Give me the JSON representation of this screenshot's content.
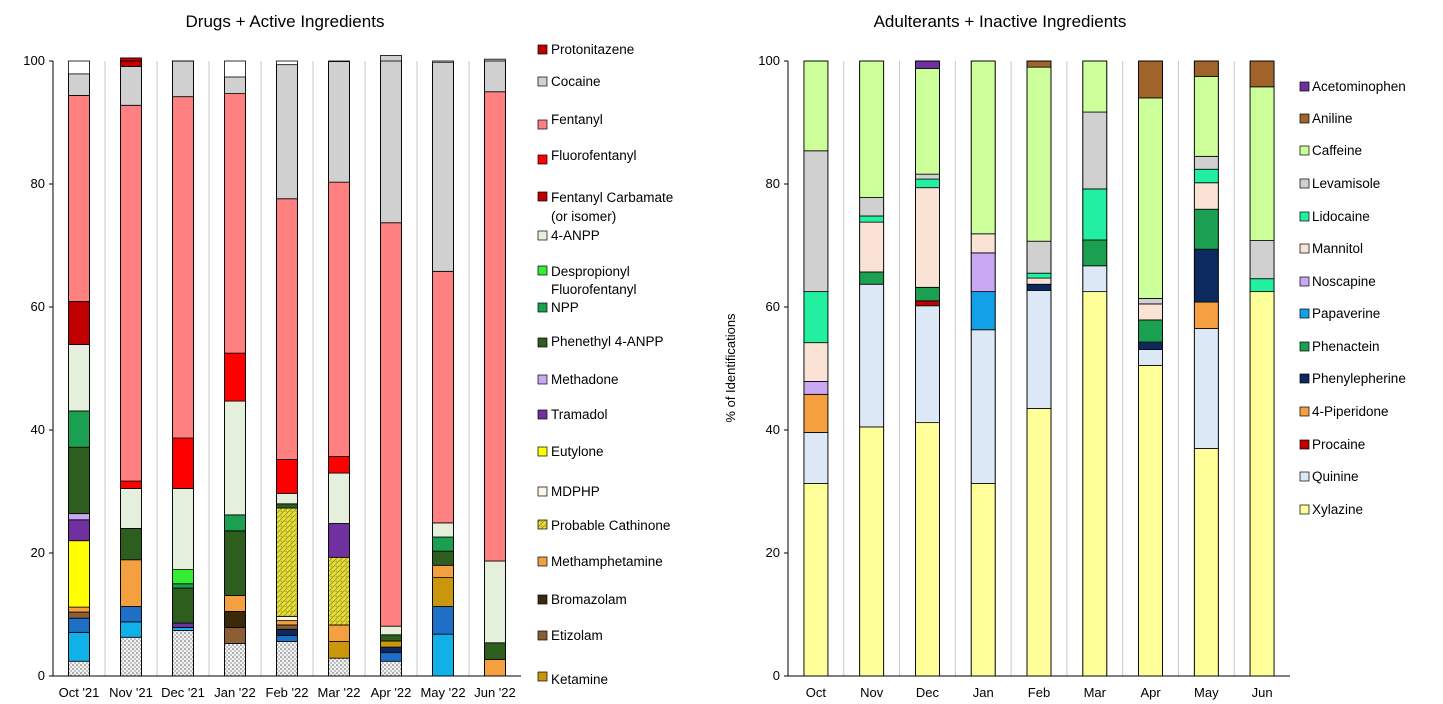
{
  "chart_data": [
    {
      "type": "bar",
      "stacked": true,
      "title": "Drugs + Active Ingredients",
      "ylabel": "",
      "ylim": [
        0,
        100
      ],
      "yticks": [
        0,
        20,
        40,
        60,
        80,
        100
      ],
      "grid": "vertical",
      "legend_position": "right",
      "categories": [
        "Oct '21",
        "Nov '21",
        "Dec '21",
        "Jan '22",
        "Feb '22",
        "Mar '22",
        "Apr '22",
        "May '22",
        "Jun '22"
      ],
      "stack_order_bottom_to_top": [
        "Other (dotted)",
        "Fentanyl-related blue",
        "Ketamine",
        "Etizolam",
        "Bromazolam",
        "Methamphetamine",
        "MDPHP",
        "Probable Cathinone",
        "Eutylone",
        "Tramadol",
        "Methadone",
        "Phenethyl 4-ANPP",
        "NPP",
        "Despropionyl Fluorofentanyl",
        "4-ANPP",
        "Fentanyl Carbamate (or isomer)",
        "Fluorofentanyl",
        "Fentanyl",
        "Cocaine",
        "Protonitazene"
      ],
      "series": [
        {
          "name": "Ketamine",
          "color": "#c9960c",
          "values": [
            0,
            0,
            0,
            0,
            0,
            2.7,
            1.0,
            4.7,
            0
          ]
        },
        {
          "name": "Etizolam",
          "color": "#8b5e34",
          "values": [
            1.0,
            0,
            0,
            2.6,
            0.7,
            0,
            0,
            0,
            0
          ]
        },
        {
          "name": "Bromazolam",
          "color": "#3b2a0a",
          "values": [
            0,
            0,
            0,
            2.6,
            0,
            0,
            0,
            0,
            0
          ]
        },
        {
          "name": "Methamphetamine",
          "color": "#f5a040",
          "values": [
            0.8,
            7.6,
            0,
            2.6,
            0.7,
            2.7,
            0,
            2.0,
            2.7
          ]
        },
        {
          "name": "MDPHP",
          "color": "#fdf5e6",
          "values": [
            0,
            0,
            0,
            0,
            0.7,
            0,
            0,
            0,
            0
          ]
        },
        {
          "name": "Probable Cathinone",
          "color": "#d8d23a",
          "values": [
            0,
            0,
            0,
            0,
            17.6,
            11.0,
            0,
            0,
            0
          ]
        },
        {
          "name": "Eutylone",
          "color": "#ffff00",
          "values": [
            10.8,
            0,
            0,
            0,
            0,
            0,
            0,
            0,
            0
          ]
        },
        {
          "name": "Tramadol",
          "color": "#7030a0",
          "values": [
            3.4,
            0,
            0.7,
            0,
            0,
            5.5,
            0,
            0,
            0
          ]
        },
        {
          "name": "Methadone",
          "color": "#c8a8f0",
          "values": [
            1.0,
            0,
            0,
            0,
            0,
            0,
            0,
            0,
            0
          ]
        },
        {
          "name": "Phenethyl 4-ANPP",
          "color": "#2e5e1e",
          "values": [
            10.8,
            5.1,
            5.7,
            10.5,
            0.7,
            0,
            1.0,
            2.3,
            2.7
          ]
        },
        {
          "name": "NPP",
          "color": "#1aa050",
          "values": [
            5.9,
            0,
            0.7,
            2.6,
            0,
            0,
            0,
            2.3,
            0
          ]
        },
        {
          "name": "Despropionyl Fluorofentanyl",
          "color": "#33ee33",
          "values": [
            0,
            0,
            2.3,
            0,
            0,
            0,
            0,
            0,
            0
          ]
        },
        {
          "name": "4-ANPP",
          "color": "#e4f0dc",
          "values": [
            10.8,
            6.5,
            13.2,
            18.5,
            1.7,
            8.2,
            1.4,
            2.3,
            13.3
          ]
        },
        {
          "name": "Fentanyl Carbamate (or isomer)",
          "color": "#c00000",
          "values": [
            7.0,
            0,
            0,
            0,
            0,
            0,
            0,
            0,
            0
          ]
        },
        {
          "name": "Fluorofentanyl",
          "color": "#ff0000",
          "values": [
            0,
            1.2,
            8.2,
            7.8,
            5.5,
            2.7,
            0,
            0,
            0
          ]
        },
        {
          "name": "Fentanyl",
          "color": "#ff8080",
          "values": [
            33.5,
            61.1,
            55.5,
            42.2,
            42.4,
            44.6,
            65.6,
            40.9,
            76.3
          ]
        },
        {
          "name": "Cocaine",
          "color": "#d0d0d0",
          "values": [
            3.5,
            6.3,
            5.8,
            2.7,
            21.8,
            19.6,
            27.2,
            34.0,
            5.3
          ]
        },
        {
          "name": "Protonitazene",
          "color": "#c00000",
          "values": [
            0,
            1.4,
            0,
            0,
            0,
            0,
            0,
            0,
            0
          ]
        },
        {
          "name": "",
          "color": "#e0e0e0",
          "pattern": "dotted",
          "values": [
            2.4,
            6.3,
            7.4,
            5.3,
            5.6,
            2.9,
            2.4,
            0,
            0
          ]
        },
        {
          "name": "",
          "color": "#1e6fc8",
          "values": [
            2.3,
            2.5,
            0,
            0,
            1.0,
            0,
            1.4,
            4.5,
            0
          ]
        },
        {
          "name": "",
          "color": "#12b0e8",
          "values": [
            4.7,
            2.5,
            0.5,
            0,
            0,
            0,
            0,
            6.8,
            0
          ]
        },
        {
          "name": "",
          "color": "#0d2a60",
          "values": [
            0,
            0,
            0,
            0,
            1.0,
            0,
            0.9,
            0,
            0
          ]
        }
      ]
    },
    {
      "type": "bar",
      "stacked": true,
      "title": "Adulterants + Inactive Ingredients",
      "ylabel": "% of Identifications",
      "ylim": [
        0,
        100
      ],
      "yticks": [
        0,
        20,
        40,
        60,
        80,
        100
      ],
      "grid": "vertical",
      "legend_position": "right",
      "categories": [
        "Oct",
        "Nov",
        "Dec",
        "Jan",
        "Feb",
        "Mar",
        "Apr",
        "May",
        "Jun"
      ],
      "series": [
        {
          "name": "Xylazine",
          "color": "#ffff99",
          "values": [
            31.3,
            40.5,
            41.2,
            31.3,
            43.5,
            62.5,
            50.5,
            37.0,
            62.5
          ]
        },
        {
          "name": "Quinine",
          "color": "#dce8f5",
          "values": [
            8.3,
            23.2,
            19.0,
            25.0,
            19.2,
            4.2,
            2.6,
            19.5,
            0
          ]
        },
        {
          "name": "Procaine",
          "color": "#c00000",
          "values": [
            0,
            0,
            0.8,
            0,
            0,
            0,
            0,
            0,
            0
          ]
        },
        {
          "name": "4-Piperidone",
          "color": "#f5a040",
          "values": [
            6.2,
            0,
            0,
            0,
            0,
            0,
            0,
            4.3,
            0
          ]
        },
        {
          "name": "Phenylepherine",
          "color": "#0d2a60",
          "values": [
            0,
            0,
            0,
            0,
            1.0,
            0,
            1.2,
            8.6,
            0
          ]
        },
        {
          "name": "Phenactein",
          "color": "#1aa050",
          "values": [
            0,
            2.0,
            2.2,
            0,
            0,
            4.2,
            3.6,
            6.5,
            0
          ]
        },
        {
          "name": "Papaverine",
          "color": "#12a0e8",
          "values": [
            0,
            0,
            0,
            6.2,
            0,
            0,
            0,
            0,
            0
          ]
        },
        {
          "name": "Noscapine",
          "color": "#c8a8f0",
          "values": [
            2.1,
            0,
            0,
            6.3,
            0,
            0,
            0,
            0,
            0
          ]
        },
        {
          "name": "Mannitol",
          "color": "#fae3d5",
          "values": [
            6.3,
            8.1,
            16.2,
            3.1,
            1.0,
            0,
            2.6,
            4.3,
            0
          ]
        },
        {
          "name": "Lidocaine",
          "color": "#22f0a0",
          "values": [
            8.3,
            1.0,
            1.4,
            0,
            0.8,
            8.3,
            0,
            2.2,
            2.1
          ]
        },
        {
          "name": "Levamisole",
          "color": "#d0d0d0",
          "values": [
            22.9,
            3.0,
            0.8,
            0,
            5.2,
            12.5,
            0.9,
            2.1,
            6.2
          ]
        },
        {
          "name": "Caffeine",
          "color": "#ccff99",
          "values": [
            14.6,
            22.2,
            17.2,
            28.1,
            28.3,
            8.3,
            32.6,
            13.0,
            25.0
          ]
        },
        {
          "name": "Aniline",
          "color": "#a0642a",
          "values": [
            0,
            0,
            0,
            0,
            1.0,
            0,
            6.0,
            2.5,
            4.2
          ]
        },
        {
          "name": "Acetominophen",
          "color": "#7030a0",
          "values": [
            0,
            0,
            1.2,
            0,
            0,
            0,
            0,
            0,
            0
          ]
        }
      ]
    }
  ],
  "left_chart": {
    "title": "Drugs + Active Ingredients",
    "legend": [
      "Protonitazene",
      "Cocaine",
      "Fentanyl",
      "Fluorofentanyl",
      "Fentanyl Carbamate",
      "(or isomer)",
      "4-ANPP",
      "Despropionyl",
      "Fluorofentanyl",
      "NPP",
      "Phenethyl 4-ANPP",
      "Methadone",
      "Tramadol",
      "Eutylone",
      "MDPHP",
      "Probable Cathinone",
      "Methamphetamine",
      "Bromazolam",
      "Etizolam",
      "Ketamine"
    ]
  },
  "right_chart": {
    "title": "Adulterants + Inactive Ingredients",
    "ylabel": "% of Identifications",
    "legend": [
      "Acetominophen",
      "Aniline",
      "Caffeine",
      "Levamisole",
      "Lidocaine",
      "Mannitol",
      "Noscapine",
      "Papaverine",
      "Phenactein",
      "Phenylepherine",
      "4-Piperidone",
      "Procaine",
      "Quinine",
      "Xylazine"
    ]
  }
}
